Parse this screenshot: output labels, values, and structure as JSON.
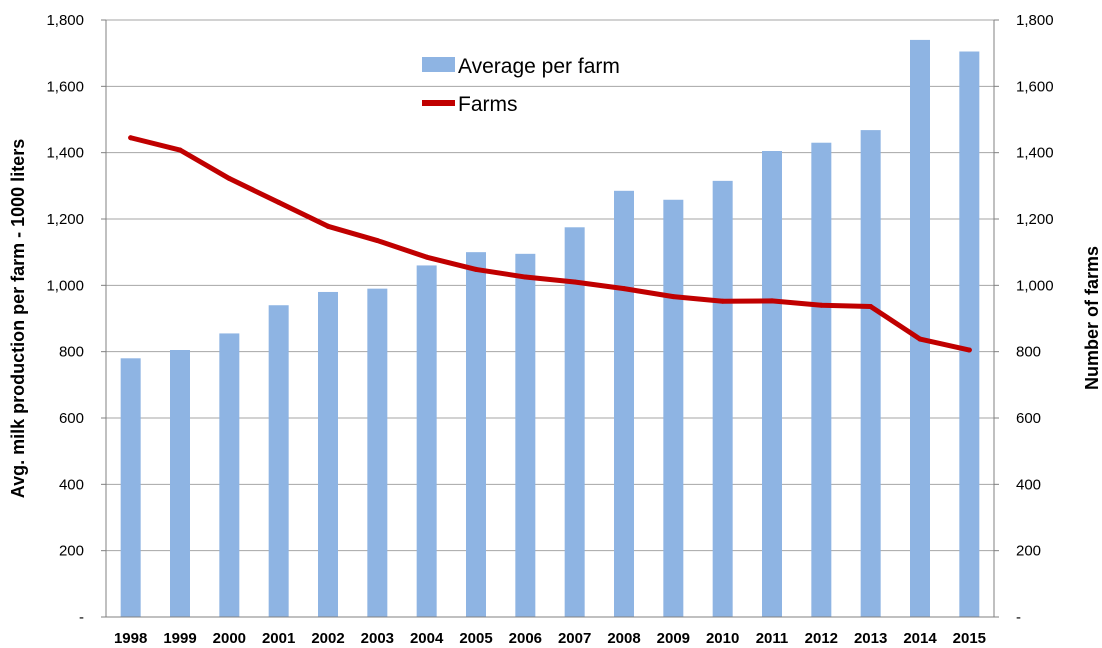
{
  "chart_data": {
    "type": "bar",
    "categories": [
      "1998",
      "1999",
      "2000",
      "2001",
      "2002",
      "2003",
      "2004",
      "2005",
      "2006",
      "2007",
      "2008",
      "2009",
      "2010",
      "2011",
      "2012",
      "2013",
      "2014",
      "2015"
    ],
    "series": [
      {
        "name": "Average per farm",
        "type": "bar",
        "axis": "left",
        "color": "#8EB4E3",
        "values": [
          780,
          805,
          855,
          940,
          980,
          990,
          1060,
          1100,
          1095,
          1175,
          1285,
          1258,
          1315,
          1405,
          1430,
          1468,
          1740,
          1705
        ]
      },
      {
        "name": "Farms",
        "type": "line",
        "axis": "right",
        "color": "#C00000",
        "values": [
          1445,
          1408,
          1322,
          1250,
          1178,
          1135,
          1085,
          1048,
          1025,
          1010,
          990,
          966,
          952,
          953,
          940,
          936,
          838,
          805
        ]
      }
    ],
    "y_left": {
      "label": "Avg. milk production per farm - 1000 liters",
      "ylim": [
        0,
        1800
      ],
      "ticks": [
        0,
        200,
        400,
        600,
        800,
        1000,
        1200,
        1400,
        1600,
        1800
      ],
      "tick_labels": [
        "-",
        "200",
        "400",
        "600",
        "800",
        "1,000",
        "1,200",
        "1,400",
        "1,600",
        "1,800"
      ]
    },
    "y_right": {
      "label": "Number of farms",
      "ylim": [
        0,
        1800
      ],
      "ticks": [
        0,
        200,
        400,
        600,
        800,
        1000,
        1200,
        1400,
        1600,
        1800
      ],
      "tick_labels": [
        "-",
        "200",
        "400",
        "600",
        "800",
        "1,000",
        "1,200",
        "1,400",
        "1,600",
        "1,800"
      ]
    },
    "grid": true,
    "legend_position": "top-center"
  }
}
